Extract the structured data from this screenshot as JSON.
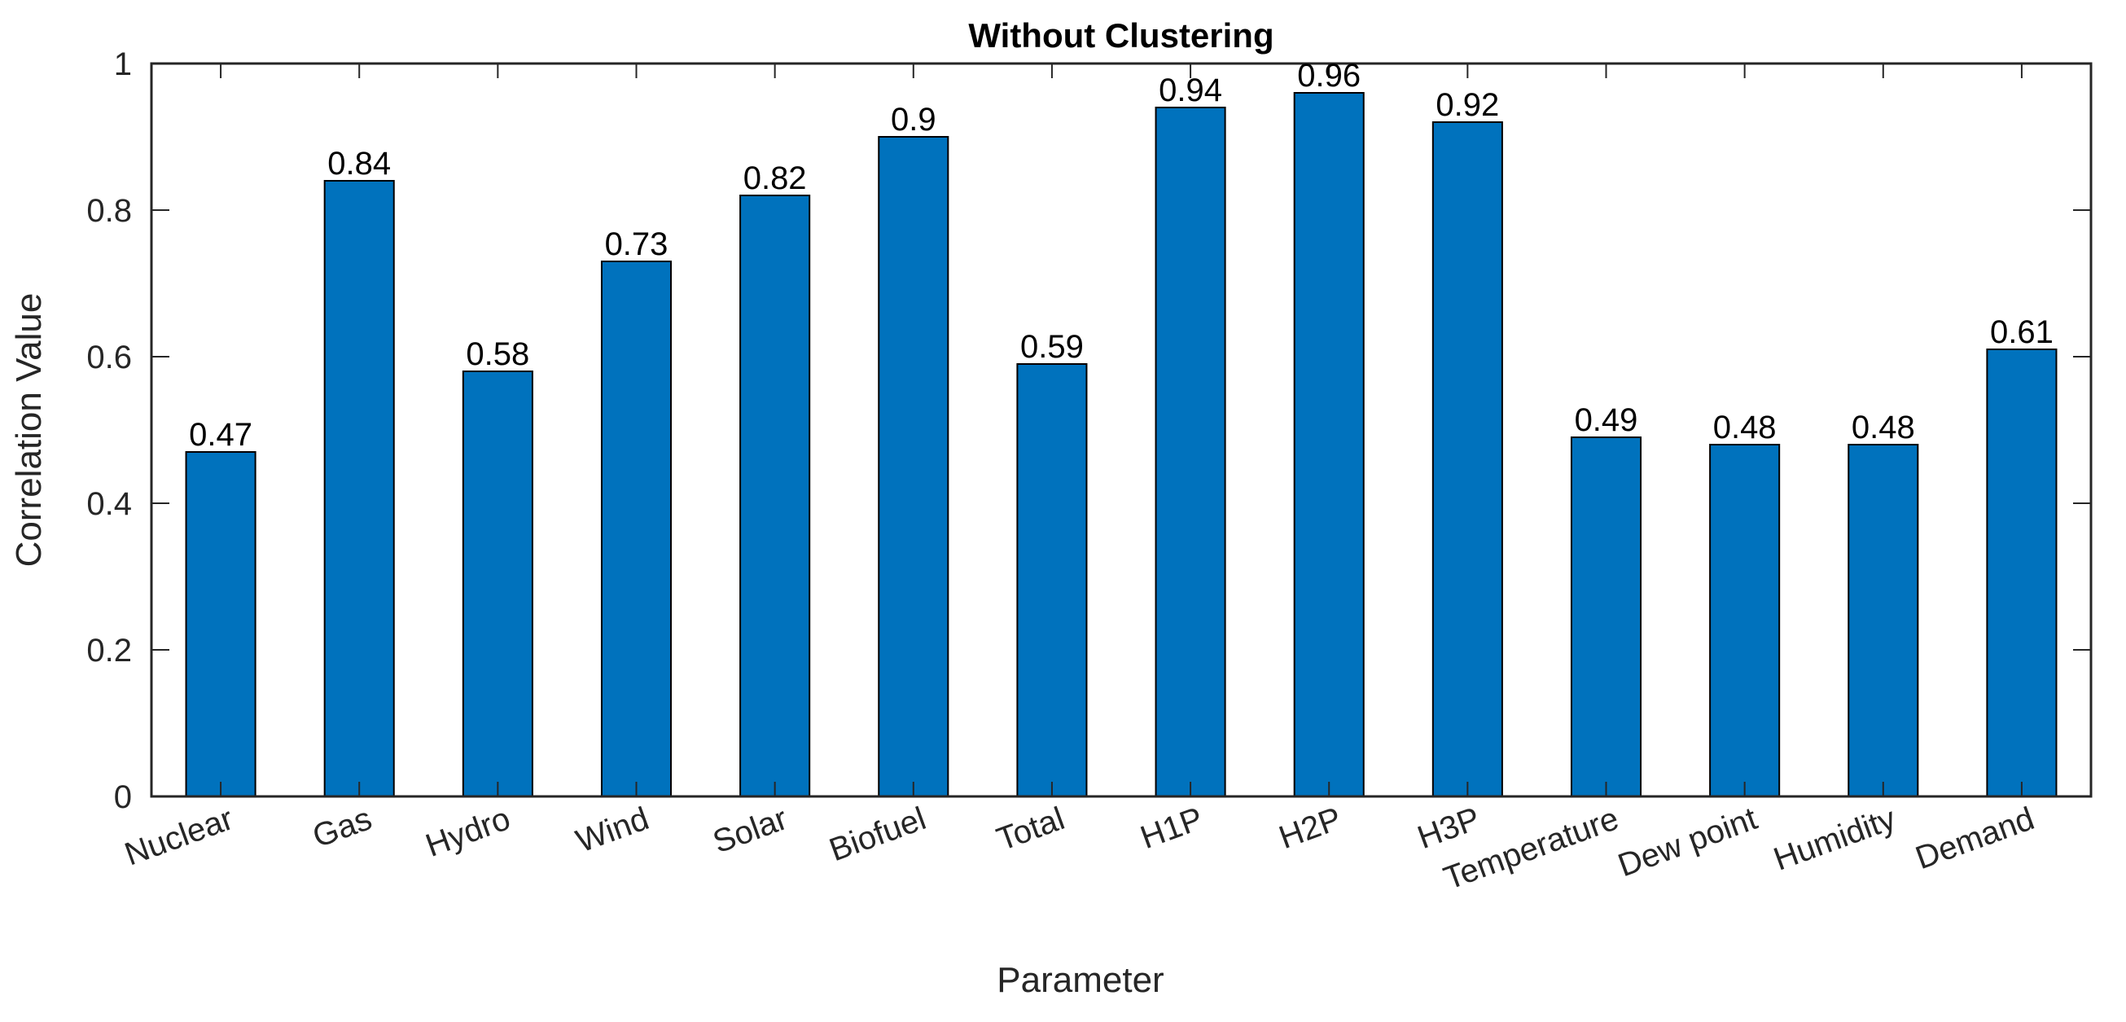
{
  "chart_data": {
    "type": "bar",
    "title": "Without Clustering",
    "xlabel": "Parameter",
    "ylabel": "Correlation Value",
    "categories": [
      "Nuclear",
      "Gas",
      "Hydro",
      "Wind",
      "Solar",
      "Biofuel",
      "Total",
      "H1P",
      "H2P",
      "H3P",
      "Temperature",
      "Dew point",
      "Humidity",
      "Demand"
    ],
    "values": [
      0.47,
      0.84,
      0.58,
      0.73,
      0.82,
      0.9,
      0.59,
      0.94,
      0.96,
      0.92,
      0.49,
      0.48,
      0.48,
      0.61
    ],
    "value_labels": [
      "0.47",
      "0.84",
      "0.58",
      "0.73",
      "0.82",
      "0.9",
      "0.59",
      "0.94",
      "0.96",
      "0.92",
      "0.49",
      "0.48",
      "0.48",
      "0.61"
    ],
    "ylim": [
      0,
      1
    ],
    "yticks": [
      0,
      0.2,
      0.4,
      0.6,
      0.8,
      1
    ],
    "ytick_labels": [
      "0",
      "0.2",
      "0.4",
      "0.6",
      "0.8",
      "1"
    ],
    "bar_color": "#0072BD",
    "grid": false,
    "legend": "none"
  }
}
